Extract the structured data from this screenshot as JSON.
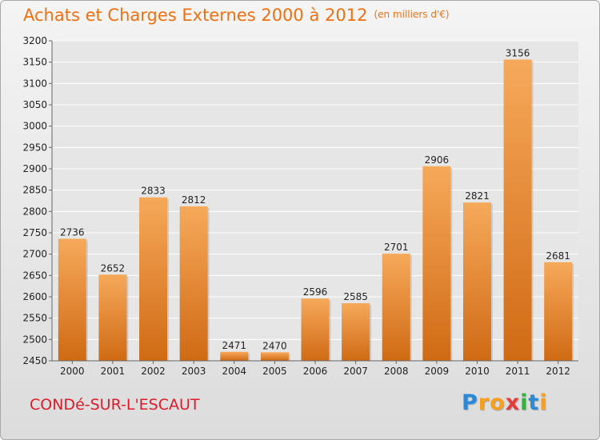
{
  "chart_data": {
    "type": "bar",
    "title": "Achats et Charges Externes 2000 à 2012",
    "subtitle": "(en milliers d'€)",
    "categories": [
      "2000",
      "2001",
      "2002",
      "2003",
      "2004",
      "2005",
      "2006",
      "2007",
      "2008",
      "2009",
      "2010",
      "2011",
      "2012"
    ],
    "series": [
      {
        "values": [
          2736,
          2652,
          2833,
          2812,
          2471,
          2470,
          2596,
          2585,
          2701,
          2906,
          2821,
          3156,
          2681
        ]
      }
    ],
    "xlabel": "",
    "ylabel": "",
    "ylim": [
      2450,
      3200
    ],
    "yticks": [
      2450,
      2500,
      2550,
      2600,
      2650,
      2700,
      2750,
      2800,
      2850,
      2900,
      2950,
      3000,
      3050,
      3100,
      3150,
      3200
    ],
    "grid": true,
    "legend": "none",
    "colors": {
      "bar_top": "#f6a95a",
      "bar_bottom": "#d06a14",
      "title": "#f07010",
      "grid": "#ffffff"
    }
  },
  "footer": {
    "town": "CONDé-SUR-L'ESCAUT"
  },
  "logo": {
    "letters": [
      "P",
      "r",
      "o",
      "x",
      "i",
      "t",
      "i"
    ],
    "colors": [
      "#2a8ad8",
      "#f5a020",
      "#f5a020",
      "#e83a3a",
      "#38b040",
      "#2a8ad8",
      "#f5a020"
    ]
  }
}
